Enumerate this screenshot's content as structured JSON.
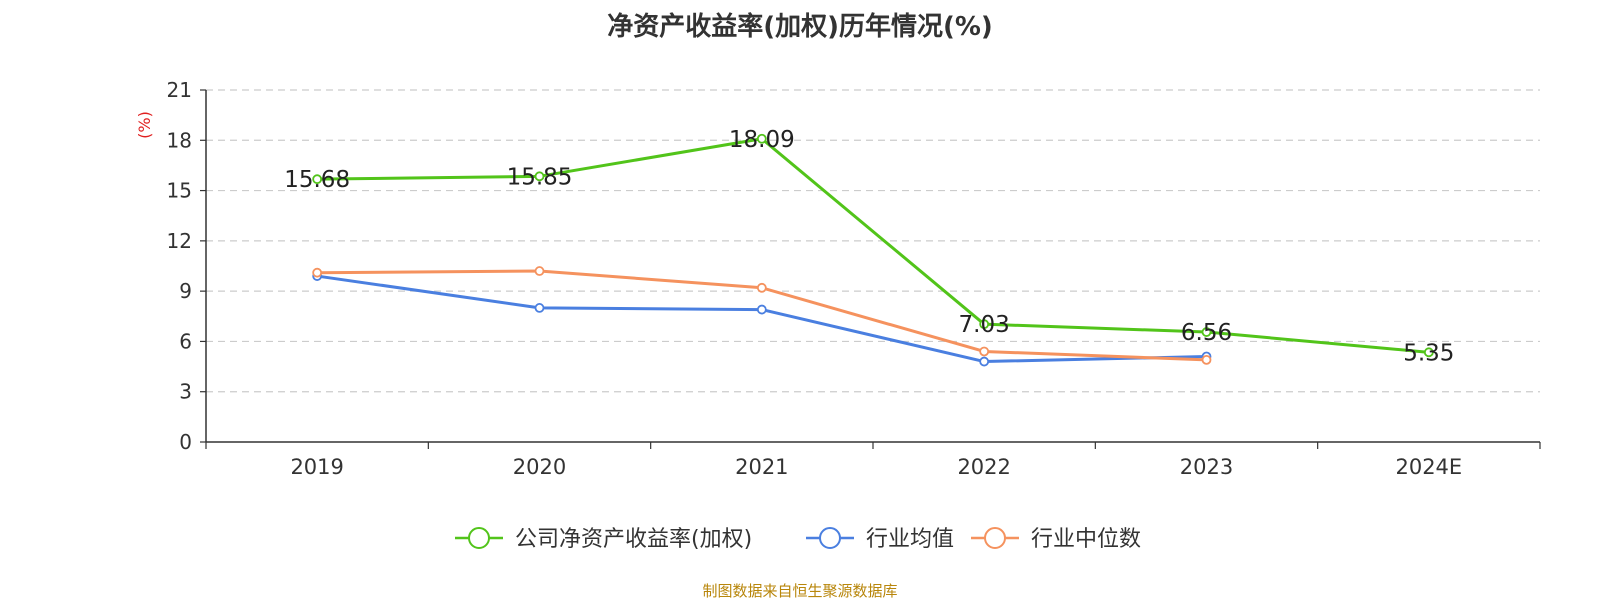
{
  "chart_data": {
    "type": "line",
    "title": "净资产收益率(加权)历年情况(%)",
    "ylabel": "(%)",
    "xlabel": "",
    "categories": [
      "2019",
      "2020",
      "2021",
      "2022",
      "2023",
      "2024E"
    ],
    "ylim": [
      0,
      21
    ],
    "yticks": [
      0,
      3,
      6,
      9,
      12,
      15,
      18,
      21
    ],
    "grid": true,
    "legend_position": "bottom",
    "series": [
      {
        "name": "公司净资产收益率(加权)",
        "color": "#52c41a",
        "values": [
          15.68,
          15.85,
          18.09,
          7.03,
          6.56,
          5.35
        ],
        "data_labels": [
          "15.68",
          "15.85",
          "18.09",
          "7.03",
          "6.56",
          "5.35"
        ]
      },
      {
        "name": "行业均值",
        "color": "#4a7fe0",
        "values": [
          9.9,
          8.0,
          7.9,
          4.8,
          5.1,
          null
        ]
      },
      {
        "name": "行业中位数",
        "color": "#f5925e",
        "values": [
          10.1,
          10.2,
          9.2,
          5.4,
          4.9,
          null
        ]
      }
    ]
  },
  "source_note": "制图数据来自恒生聚源数据库"
}
